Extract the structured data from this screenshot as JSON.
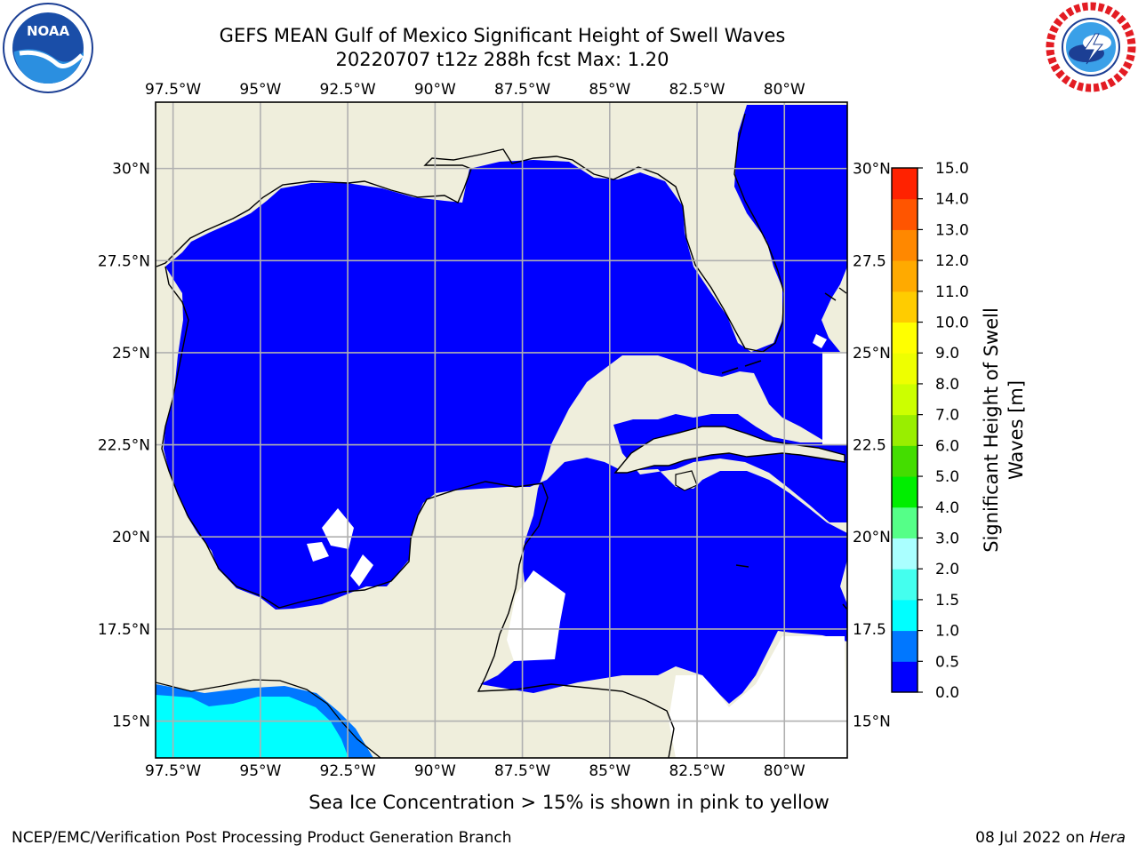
{
  "title": {
    "line1": "GEFS MEAN Gulf of Mexico Significant Height of Swell Waves",
    "line2": "20220707 t12z 288h fcst   Max: 1.20"
  },
  "map": {
    "lon_labels": [
      "97.5°W",
      "95°W",
      "92.5°W",
      "90°W",
      "87.5°W",
      "85°W",
      "82.5°W",
      "80°W"
    ],
    "lon_values": [
      -97.5,
      -95,
      -92.5,
      -90,
      -87.5,
      -85,
      -82.5,
      -80
    ],
    "lat_labels": [
      "30°N",
      "27.5°N",
      "25°N",
      "22.5°N",
      "20°N",
      "17.5°N",
      "15°N"
    ],
    "lat_labels_right": [
      "30°N",
      "27.5",
      "25°N",
      "22.5",
      "20°N",
      "17.5",
      "15°N"
    ],
    "lat_values": [
      30,
      27.5,
      25,
      22.5,
      20,
      17.5,
      15
    ],
    "extent": {
      "lon_min": -98,
      "lon_max": -78.2,
      "lat_min": 14,
      "lat_max": 31.8
    },
    "colors": {
      "land": "#efeedc",
      "ocean_low": "#0000ff",
      "ocean_mid": "#0077ff",
      "ocean_high": "#00ffff",
      "grid": "#b0b0b0"
    }
  },
  "colorbar": {
    "label_line1": "Significant Height of Swell",
    "label_line2": "Waves [m]",
    "ticks": [
      "0.0",
      "0.5",
      "1.0",
      "1.5",
      "2.0",
      "3.0",
      "4.0",
      "5.0",
      "6.0",
      "7.0",
      "8.0",
      "9.0",
      "10.0",
      "11.0",
      "12.0",
      "13.0",
      "14.0",
      "15.0"
    ],
    "colors": [
      "#0000ff",
      "#0077ff",
      "#00ffff",
      "#44ffee",
      "#aaffff",
      "#55ff88",
      "#00ee00",
      "#44dd00",
      "#99ee00",
      "#ccff00",
      "#eeff00",
      "#ffff00",
      "#ffcc00",
      "#ffaa00",
      "#ff8800",
      "#ff5500",
      "#ff2200"
    ]
  },
  "ice_note": "Sea Ice Concentration > 15% is shown in pink to yellow",
  "footer": {
    "left": "NCEP/EMC/Verification Post Processing Product Generation Branch",
    "right_date": "08 Jul 2022 on ",
    "right_host": "Hera"
  },
  "logos": {
    "noaa_text": "NOAA",
    "nws_ring": "NATIONAL WEATHER SERVICE"
  }
}
